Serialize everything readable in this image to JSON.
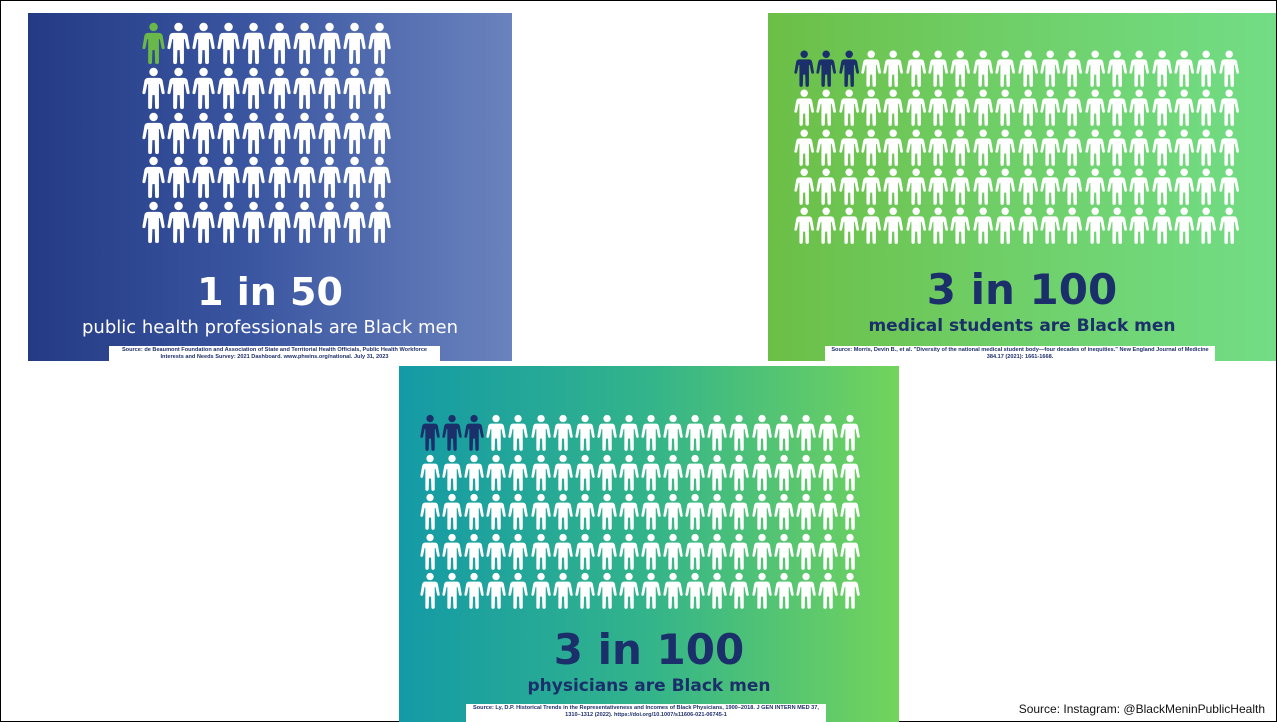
{
  "slide_credit": "Source: Instagram: @BlackMeninPublicHealth",
  "panels": [
    {
      "stat": "1 in 50",
      "caption": "public health professionals are Black men",
      "source": "Source: de Beaumont Foundation and Association of State and Territorial Health Officials, Public Health Workforce Interests and Needs Survey: 2021 Dashboard. www.phwins.org/national. July 31, 2023",
      "highlighted_count": 1,
      "total_count": 50,
      "colors": {
        "highlight_figure": "#6ab84a",
        "figure": "#ffffff",
        "stat_text": "#ffffff",
        "caption_text": "#ffffff"
      }
    },
    {
      "stat": "3 in 100",
      "caption": "medical students are Black men",
      "source": "Source: Morris, Devin B., et al. \"Diversity of the national medical student body—four decades of inequities.\" New England Journal of Medicine 384.17 (2021): 1661-1668.",
      "highlighted_count": 3,
      "total_count": 100,
      "colors": {
        "highlight_figure": "#1b2f6b",
        "figure": "#ffffff",
        "stat_text": "#1b2f6b",
        "caption_text": "#1b2f6b"
      }
    },
    {
      "stat": "3 in 100",
      "caption": "physicians are Black men",
      "source": "Source: Ly, D.P. Historical Trends in the Representativeness and Incomes of Black Physicians, 1900–2018. J GEN INTERN MED 37, 1310–1312 (2022). https://doi.org/10.1007/s11606-021-06745-1",
      "highlighted_count": 3,
      "total_count": 100,
      "colors": {
        "highlight_figure": "#1b2f6b",
        "figure": "#ffffff",
        "stat_text": "#1b2f6b",
        "caption_text": "#1b2f6b"
      }
    }
  ]
}
